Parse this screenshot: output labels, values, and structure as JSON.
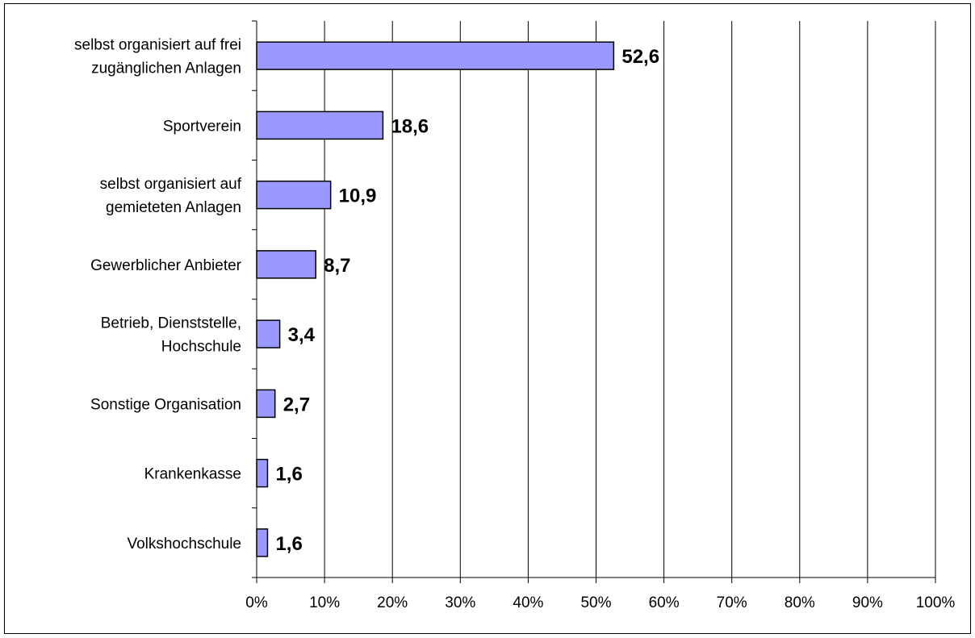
{
  "chart_data": {
    "type": "bar",
    "orientation": "horizontal",
    "title": "",
    "xlabel": "",
    "ylabel": "",
    "categories": [
      [
        "selbst organisiert auf frei",
        "zugänglichen Anlagen"
      ],
      [
        "Sportverein"
      ],
      [
        "selbst organisiert auf",
        "gemieteten Anlagen"
      ],
      [
        "Gewerblicher Anbieter"
      ],
      [
        "Betrieb, Dienststelle,",
        "Hochschule"
      ],
      [
        "Sonstige Organisation"
      ],
      [
        "Krankenkasse"
      ],
      [
        "Volkshochschule"
      ]
    ],
    "values": [
      52.6,
      18.6,
      10.9,
      8.7,
      3.4,
      2.7,
      1.6,
      1.6
    ],
    "value_labels": [
      "52,6",
      "18,6",
      "10,9",
      "8,7",
      "3,4",
      "2,7",
      "1,6",
      "1,6"
    ],
    "xlim": [
      0,
      100
    ],
    "xticks": [
      "0%",
      "10%",
      "20%",
      "30%",
      "40%",
      "50%",
      "60%",
      "70%",
      "80%",
      "90%",
      "100%"
    ],
    "grid": "vertical",
    "legend": "none",
    "bar_color": "#9999ff",
    "bar_edge_color": "#000000"
  }
}
